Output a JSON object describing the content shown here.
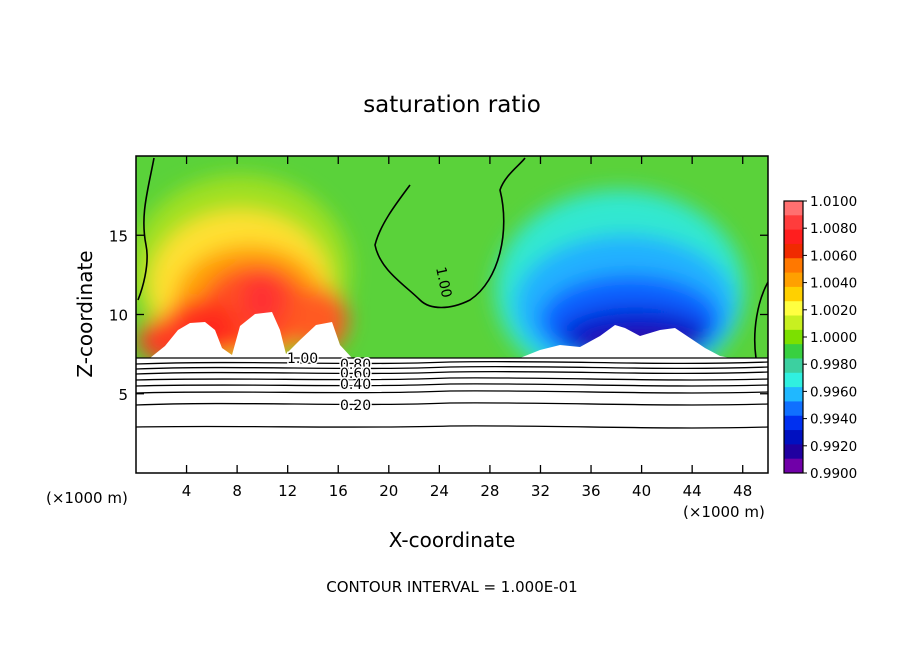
{
  "chart_data": {
    "type": "heatmap",
    "title": "saturation ratio",
    "xlabel": "X-coordinate",
    "ylabel": "Z-coordinate",
    "x_unit_left": "(×1000 m)",
    "x_unit_right": "(×1000 m)",
    "xlim": [
      0,
      50
    ],
    "ylim": [
      0,
      20
    ],
    "xticks": [
      4,
      8,
      12,
      16,
      20,
      24,
      28,
      32,
      36,
      40,
      44,
      48
    ],
    "yticks": [
      5,
      10,
      15
    ],
    "colorbar": {
      "levels": [
        "1.0100",
        "1.0080",
        "1.0060",
        "1.0040",
        "1.0020",
        "1.0000",
        "0.9980",
        "0.9960",
        "0.9940",
        "0.9920",
        "0.9900"
      ],
      "colors": [
        "#ff7070",
        "#ff3c3c",
        "#ff1e1e",
        "#f02a00",
        "#ff7800",
        "#ffa000",
        "#ffd000",
        "#ffff40",
        "#c8f020",
        "#7ce000",
        "#38d040",
        "#3cd0a0",
        "#30f0e0",
        "#20b8ff",
        "#1070ff",
        "#0030f0",
        "#0010c0",
        "#2000a0",
        "#7000a8"
      ]
    },
    "contour_labels": [
      "1.00",
      "1.00",
      "0.80",
      "0.60",
      "0.40",
      "0.20"
    ],
    "footer": "CONTOUR INTERVAL = 1.000E-01"
  }
}
